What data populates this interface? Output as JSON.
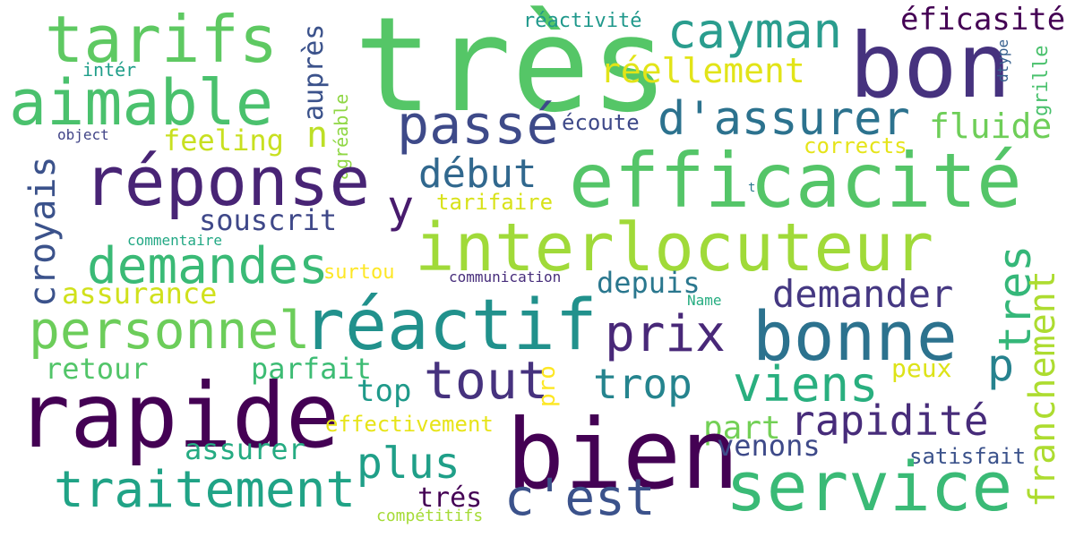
{
  "words": [
    {
      "text": "très",
      "color": "#55c667"
    },
    {
      "text": "bon",
      "color": "#46327e"
    },
    {
      "text": "tarifs",
      "color": "#5ec962"
    },
    {
      "text": "aimable",
      "color": "#4ac16d"
    },
    {
      "text": "cayman",
      "color": "#2a9d8e"
    },
    {
      "text": "éficasité",
      "color": "#440154"
    },
    {
      "text": "réactivité",
      "color": "#1f988b"
    },
    {
      "text": "réellement",
      "color": "#e2e418"
    },
    {
      "text": "intér",
      "color": "#1f9e89"
    },
    {
      "text": "auprès",
      "color": "#3b528b"
    },
    {
      "text": "agréable",
      "color": "#8fd744"
    },
    {
      "text": "dtype",
      "color": "#355f8d"
    },
    {
      "text": "grille",
      "color": "#4ac16d"
    },
    {
      "text": "passé",
      "color": "#3e4a89"
    },
    {
      "text": "d'assurer",
      "color": "#2c728e"
    },
    {
      "text": "fluide",
      "color": "#6ece58"
    },
    {
      "text": "n",
      "color": "#bddf26"
    },
    {
      "text": "écoute",
      "color": "#3e4989"
    },
    {
      "text": "object",
      "color": "#414487"
    },
    {
      "text": "feeling",
      "color": "#c8e020"
    },
    {
      "text": "corrects",
      "color": "#e5e419"
    },
    {
      "text": "croyais",
      "color": "#3b528b"
    },
    {
      "text": "réponse",
      "color": "#482475"
    },
    {
      "text": "début",
      "color": "#31688e"
    },
    {
      "text": "efficacité",
      "color": "#54c568"
    },
    {
      "text": "t",
      "color": "#2a788e"
    },
    {
      "text": "y",
      "color": "#481b6d"
    },
    {
      "text": "tarifaire",
      "color": "#d8e219"
    },
    {
      "text": "souscrit",
      "color": "#3f4889"
    },
    {
      "text": "demandes",
      "color": "#3aba76"
    },
    {
      "text": "interlocuteur",
      "color": "#a0da39"
    },
    {
      "text": "tres",
      "color": "#35b779"
    },
    {
      "text": "commentaire",
      "color": "#22a884"
    },
    {
      "text": "surtou",
      "color": "#fde725"
    },
    {
      "text": "communication",
      "color": "#472d7b"
    },
    {
      "text": "franchement",
      "color": "#addc30"
    },
    {
      "text": "assurance",
      "color": "#d0e11c"
    },
    {
      "text": "depuis",
      "color": "#2a778e"
    },
    {
      "text": "demander",
      "color": "#453882"
    },
    {
      "text": "personnel",
      "color": "#6ccd5a"
    },
    {
      "text": "réactif",
      "color": "#21918c"
    },
    {
      "text": "Name",
      "color": "#26ad81"
    },
    {
      "text": "prix",
      "color": "#482878"
    },
    {
      "text": "bonne",
      "color": "#2c728e"
    },
    {
      "text": "p",
      "color": "#26828e"
    },
    {
      "text": "retour",
      "color": "#52c569"
    },
    {
      "text": "parfait",
      "color": "#3dbc74"
    },
    {
      "text": "peux",
      "color": "#dde318"
    },
    {
      "text": "rapide",
      "color": "#440154"
    },
    {
      "text": "tout",
      "color": "#46327e"
    },
    {
      "text": "pro",
      "color": "#fde725"
    },
    {
      "text": "trop",
      "color": "#25848e"
    },
    {
      "text": "viens",
      "color": "#29af7f"
    },
    {
      "text": "top",
      "color": "#1f9a8a"
    },
    {
      "text": "rapidité",
      "color": "#472c7a"
    },
    {
      "text": "effectivement",
      "color": "#e7e419"
    },
    {
      "text": "part",
      "color": "#73d056"
    },
    {
      "text": "bien",
      "color": "#440154"
    },
    {
      "text": "venons",
      "color": "#3e4a89"
    },
    {
      "text": "assurer",
      "color": "#25ab82"
    },
    {
      "text": "satisfait",
      "color": "#3b528b"
    },
    {
      "text": "plus",
      "color": "#1f9f88"
    },
    {
      "text": "traitement",
      "color": "#20a386"
    },
    {
      "text": "c'est",
      "color": "#3b528b"
    },
    {
      "text": "service",
      "color": "#3aba76"
    },
    {
      "text": "trés",
      "color": "#440154"
    },
    {
      "text": "compétitifs",
      "color": "#a5db36"
    }
  ]
}
